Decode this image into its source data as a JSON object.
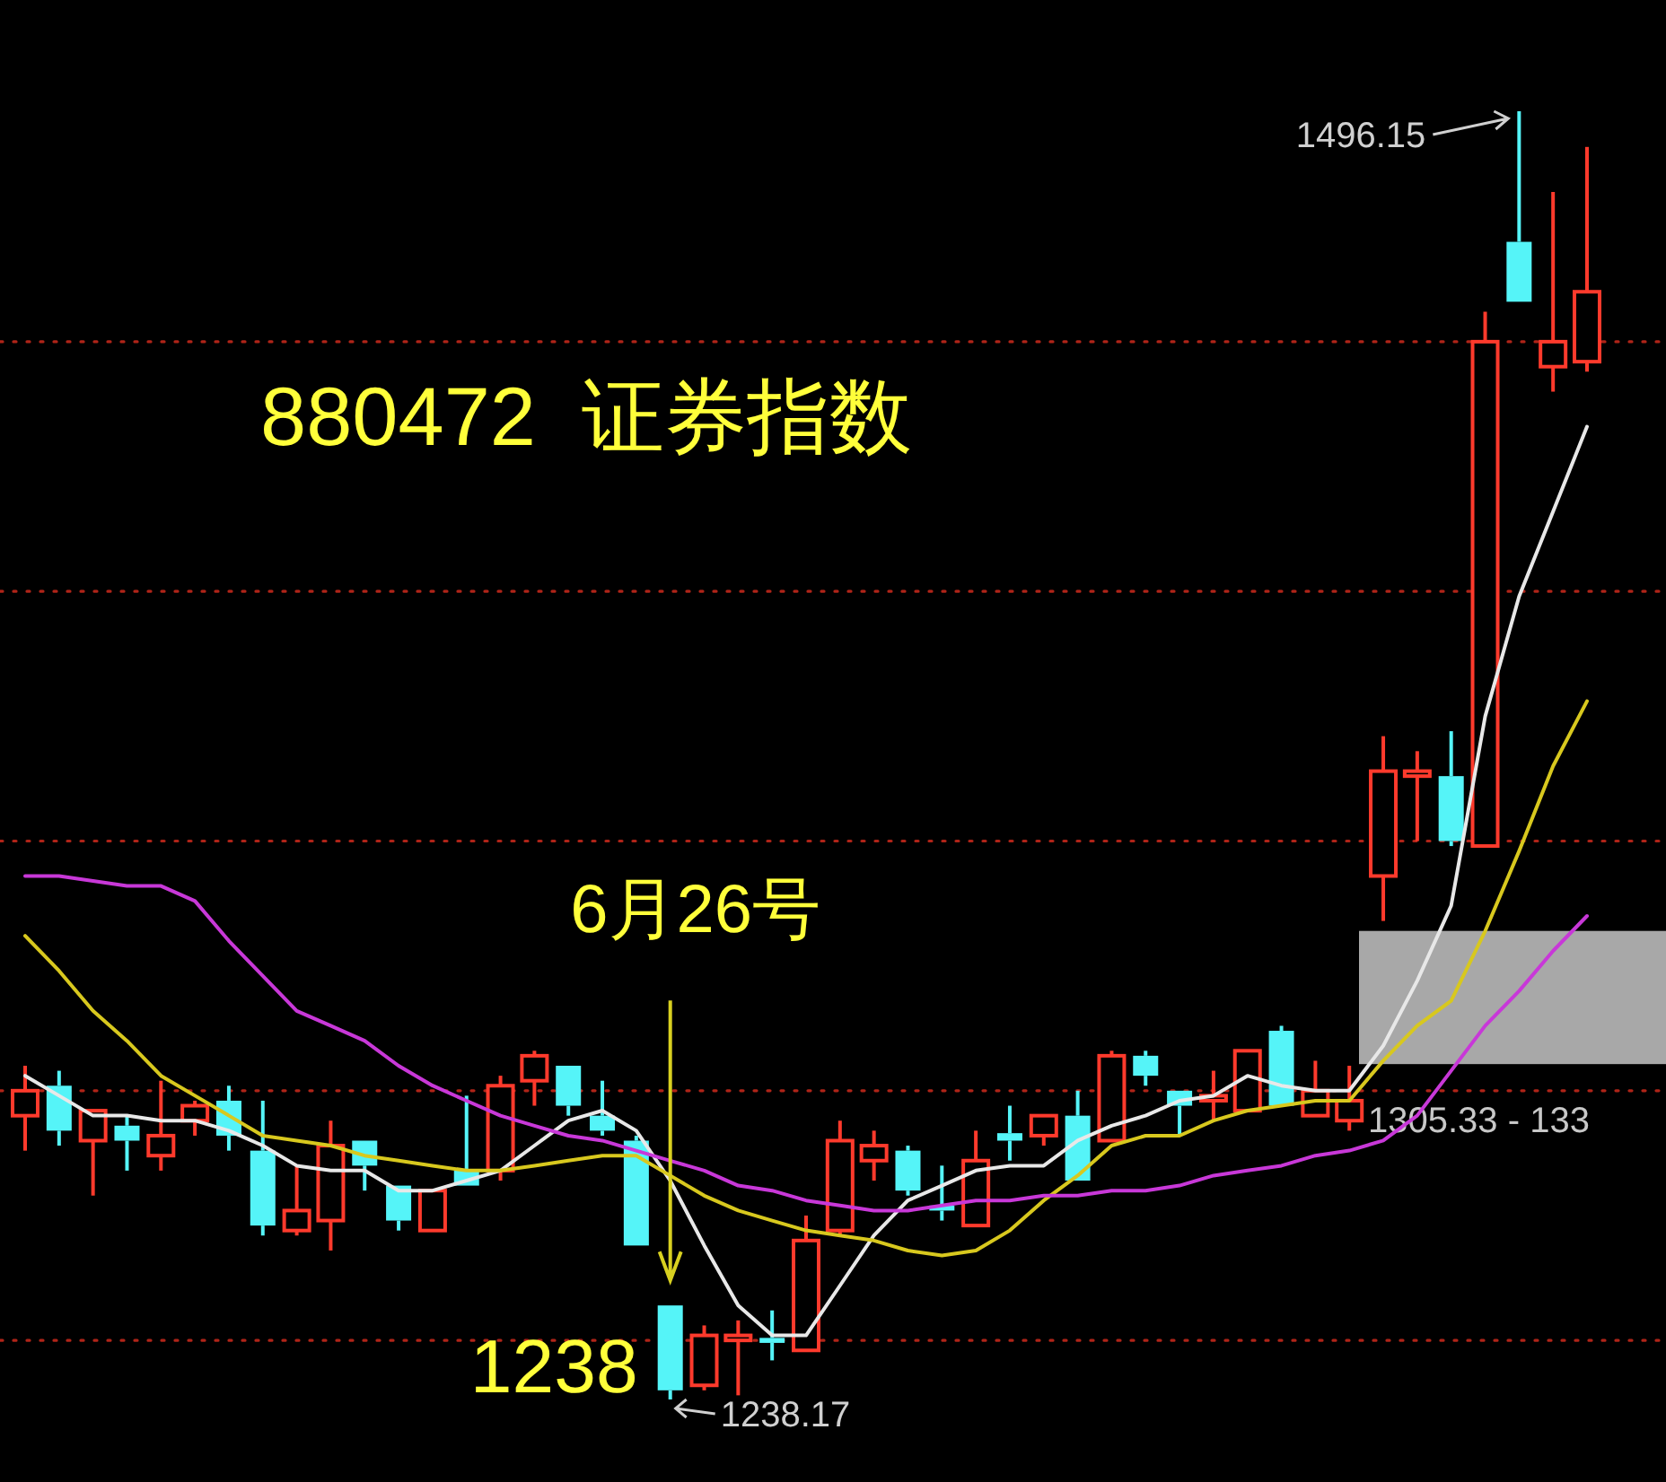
{
  "chart_data": {
    "type": "candlestick",
    "title": "880472  证券指数",
    "categories": [
      null,
      null,
      null,
      null,
      null,
      null,
      null,
      null,
      null,
      null,
      null,
      null,
      null,
      null,
      null,
      null,
      null,
      null,
      null,
      null,
      null,
      null,
      null,
      null,
      null,
      null,
      null,
      null,
      null,
      null,
      null,
      null,
      null,
      null,
      null,
      null,
      null,
      null,
      null,
      null,
      null,
      null,
      null,
      null,
      null,
      null,
      null
    ],
    "ohlc": [
      [
        1295,
        1305,
        1288,
        1300
      ],
      [
        1301,
        1304,
        1289,
        1292
      ],
      [
        1290,
        1296,
        1279,
        1296
      ],
      [
        1293,
        1295,
        1284,
        1290
      ],
      [
        1287,
        1302,
        1284,
        1291
      ],
      [
        1294,
        1298,
        1291,
        1297
      ],
      [
        1298,
        1301,
        1288,
        1291
      ],
      [
        1288,
        1298,
        1271,
        1273
      ],
      [
        1272,
        1285,
        1271,
        1276
      ],
      [
        1274,
        1294,
        1268,
        1289
      ],
      [
        1290,
        1290,
        1280,
        1285
      ],
      [
        1281,
        1281,
        1272,
        1274
      ],
      [
        1272,
        1280,
        1272,
        1280
      ],
      [
        1284,
        1299,
        1281,
        1281
      ],
      [
        1284,
        1303,
        1282,
        1301
      ],
      [
        1302,
        1308,
        1297,
        1307
      ],
      [
        1305,
        1305,
        1295,
        1297
      ],
      [
        1295,
        1302,
        1291,
        1292
      ],
      [
        1290,
        1291,
        1269,
        1269
      ],
      [
        1257,
        1257,
        1238.17,
        1240
      ],
      [
        1241,
        1253,
        1240,
        1251
      ],
      [
        1250,
        1254,
        1239,
        1251
      ],
      [
        1250.5,
        1256,
        1246,
        1249.5
      ],
      [
        1248,
        1275,
        1248,
        1270
      ],
      [
        1272,
        1294,
        1271,
        1290
      ],
      [
        1286,
        1292,
        1282,
        1289
      ],
      [
        1288,
        1289,
        1279,
        1280
      ],
      [
        1277,
        1285,
        1274,
        1276
      ],
      [
        1273,
        1292,
        1273,
        1286
      ],
      [
        1291.5,
        1297,
        1286,
        1290
      ],
      [
        1291,
        1295,
        1289,
        1295
      ],
      [
        1295,
        1300,
        1282,
        1282
      ],
      [
        1290,
        1308,
        1290,
        1307
      ],
      [
        1307,
        1308,
        1301,
        1303
      ],
      [
        1300,
        1300,
        1291,
        1297
      ],
      [
        1298,
        1304,
        1294,
        1299
      ],
      [
        1296,
        1308,
        1296,
        1308
      ],
      [
        1312,
        1313,
        1297,
        1297
      ],
      [
        1295,
        1306,
        1295,
        1300
      ],
      [
        1294,
        1305,
        1292,
        1298
      ],
      [
        1343,
        1371,
        1334,
        1364
      ],
      [
        1363,
        1368,
        1350,
        1364
      ],
      [
        1363,
        1372,
        1349,
        1350
      ],
      [
        1349,
        1456,
        1349,
        1450
      ],
      [
        1470,
        1496.15,
        1458,
        1458
      ],
      [
        1445,
        1480,
        1440,
        1450
      ],
      [
        1446,
        1489,
        1444,
        1460
      ]
    ],
    "series": [
      {
        "type": "line",
        "color": "#e8e8e8",
        "values": [
          1303,
          1299,
          1295,
          1295,
          1294,
          1294,
          1292,
          1289,
          1285,
          1284,
          1284,
          1280,
          1280,
          1282,
          1284,
          1289,
          1294,
          1296,
          1292,
          1282,
          1269,
          1257,
          1251,
          1251,
          1261,
          1271,
          1278,
          1281,
          1284,
          1285,
          1285,
          1290,
          1293,
          1295,
          1298,
          1299,
          1303,
          1301,
          1300,
          1300,
          1309,
          1322,
          1337,
          1375,
          1399,
          1416,
          1433
        ]
      },
      {
        "type": "line",
        "color": "#d8c81e",
        "values": [
          1331,
          1324,
          1316,
          1310,
          1303,
          1299,
          1295,
          1291,
          1290,
          1289,
          1287,
          1286,
          1285,
          1284,
          1284,
          1285,
          1286,
          1287,
          1287,
          1283,
          1279,
          1276,
          1274,
          1272,
          1271,
          1270,
          1268,
          1267,
          1268,
          1272,
          1278,
          1283,
          1289,
          1291,
          1291,
          1294,
          1296,
          1297,
          1298,
          1298,
          1306,
          1313,
          1318,
          1332,
          1348,
          1365,
          1378
        ]
      },
      {
        "type": "line",
        "color": "#c838d8",
        "values": [
          1343,
          1343,
          1342,
          1341,
          1341,
          1338,
          1330,
          1323,
          1316,
          1313,
          1310,
          1305,
          1301,
          1298,
          1295,
          1293,
          1291,
          1290,
          1288,
          1286,
          1284,
          1281,
          1280,
          1278,
          1277,
          1276,
          1276,
          1277,
          1278,
          1278,
          1279,
          1279,
          1280,
          1280,
          1281,
          1283,
          1284,
          1285,
          1287,
          1288,
          1290,
          1295,
          1304,
          1313,
          1320,
          1328,
          1335
        ]
      }
    ],
    "ref_lines": [
      {
        "axis": "y",
        "value": 1250,
        "color": "#b02418",
        "line_style": "dotted"
      },
      {
        "axis": "y",
        "value": 1300,
        "color": "#b02418",
        "line_style": "dotted"
      },
      {
        "axis": "y",
        "value": 1350,
        "color": "#b02418",
        "line_style": "dotted"
      },
      {
        "axis": "y",
        "value": 1400,
        "color": "#b02418",
        "line_style": "dotted"
      },
      {
        "axis": "y",
        "value": 1450,
        "color": "#b02418",
        "line_style": "dotted"
      }
    ],
    "bands": [
      {
        "axis": "y",
        "from": 1305.33,
        "to": 1332,
        "label": "1305.33 - 133",
        "color": "#a8a8a8"
      }
    ],
    "annotations": [
      "6月26号",
      "1238",
      "1238.17",
      "1496.15"
    ]
  }
}
